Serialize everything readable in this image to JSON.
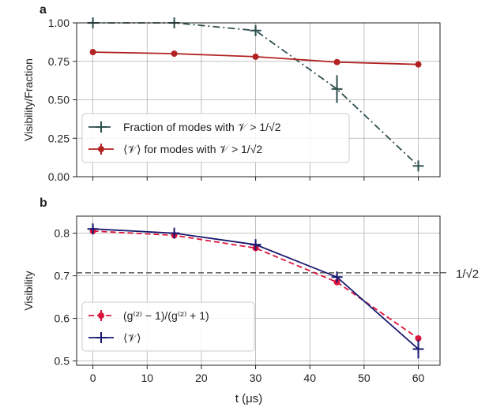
{
  "chart_data": [
    {
      "panel_label": "a",
      "type": "line",
      "ylabel": "Visibility/Fraction",
      "xlim": [
        -3,
        64
      ],
      "ylim": [
        0.0,
        1.0
      ],
      "xticks": [
        0,
        10,
        20,
        30,
        40,
        50,
        60
      ],
      "yticks": [
        0.0,
        0.25,
        0.5,
        0.75,
        1.0
      ],
      "ytick_labels": [
        "0.00",
        "0.25",
        "0.50",
        "0.75",
        "1.00"
      ],
      "grid": true,
      "legend_position": "lower-left",
      "series": [
        {
          "name": "Fraction of modes with 𝒱 > 1/√2",
          "color": "#2f4f4f",
          "style": "dashdot",
          "marker": "plus",
          "x": [
            0,
            15,
            30,
            45,
            60
          ],
          "y": [
            1.0,
            1.0,
            0.95,
            0.57,
            0.07
          ],
          "yerr": [
            0.01,
            0.01,
            0.03,
            0.09,
            0.03
          ]
        },
        {
          "name": "⟨𝒱⟩ for modes with 𝒱 > 1/√2",
          "color": "#b22222",
          "style": "solid",
          "marker": "circle",
          "x": [
            0,
            15,
            30,
            45,
            60
          ],
          "y": [
            0.81,
            0.8,
            0.78,
            0.745,
            0.73
          ],
          "yerr": [
            0,
            0,
            0,
            0,
            0
          ]
        }
      ]
    },
    {
      "panel_label": "b",
      "type": "line",
      "ylabel": "Visibility",
      "xlabel": "t (μs)",
      "xlim": [
        -3,
        64
      ],
      "ylim": [
        0.49,
        0.84
      ],
      "xticks": [
        0,
        10,
        20,
        30,
        40,
        50,
        60
      ],
      "yticks": [
        0.5,
        0.6,
        0.7,
        0.8
      ],
      "ytick_labels": [
        "0.5",
        "0.6",
        "0.7",
        "0.8"
      ],
      "grid": true,
      "legend_position": "lower-left",
      "hline": {
        "y": 0.7071,
        "label": "1/√2",
        "color": "#666666"
      },
      "series": [
        {
          "name": "(g⁽²⁾ − 1)/(g⁽²⁾ + 1)",
          "color": "#dc143c",
          "style": "dashed",
          "marker": "circle",
          "x": [
            0,
            15,
            30,
            45,
            60
          ],
          "y": [
            0.805,
            0.795,
            0.765,
            0.685,
            0.553
          ],
          "yerr": [
            0,
            0,
            0,
            0,
            0
          ]
        },
        {
          "name": "⟨𝒱⟩",
          "color": "#191970",
          "style": "solid",
          "marker": "plus",
          "x": [
            0,
            15,
            30,
            45,
            60
          ],
          "y": [
            0.81,
            0.8,
            0.773,
            0.697,
            0.528
          ],
          "yerr": [
            0.01,
            0.006,
            0.008,
            0.012,
            0.022
          ]
        }
      ]
    }
  ]
}
